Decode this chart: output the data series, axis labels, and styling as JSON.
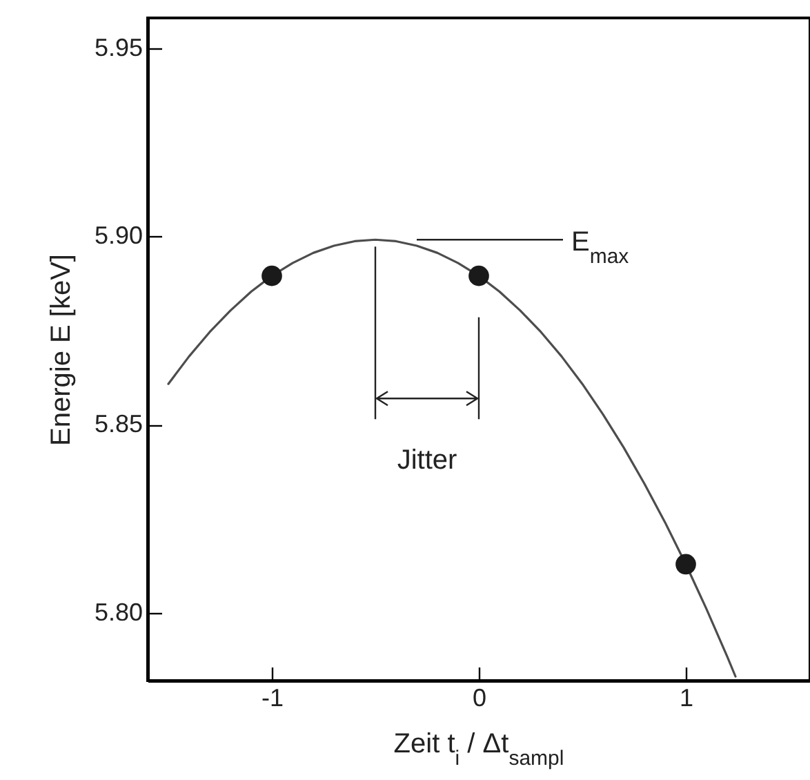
{
  "chart_data": {
    "type": "scatter",
    "xlabel": "Zeit    t$_{i}$ / Δt$_{sampl}$",
    "ylabel": "Energie  E [keV]",
    "xlim": [
      -1.6,
      1.6
    ],
    "ylim": [
      5.782,
      5.958
    ],
    "xticks": [
      -1,
      0,
      1
    ],
    "yticks": [
      {
        "value": 5.8,
        "label": "5.80"
      },
      {
        "value": 5.85,
        "label": "5.85"
      },
      {
        "value": 5.9,
        "label": "5.90"
      },
      {
        "value": 5.95,
        "label": "5.95"
      }
    ],
    "grid": false,
    "marker": "circle",
    "series": [
      {
        "type": "line",
        "color": "#4d4d4d",
        "line_style": "solid",
        "marker": "none",
        "x": [
          -1.5,
          -1.4,
          -1.3,
          -1.2,
          -1.1,
          -1.0,
          -0.9,
          -0.8,
          -0.7,
          -0.6,
          -0.5,
          -0.4,
          -0.3,
          -0.2,
          -0.1,
          0,
          0.1,
          0.2,
          0.3,
          0.4,
          0.5,
          0.6,
          0.7,
          0.8,
          0.9,
          1.0,
          1.1,
          1.2,
          1.24
        ],
        "values": [
          5.8608,
          5.8681,
          5.8746,
          5.8803,
          5.8853,
          5.8895,
          5.8929,
          5.8956,
          5.8975,
          5.8987,
          5.8991,
          5.8987,
          5.8975,
          5.8956,
          5.8929,
          5.8895,
          5.8853,
          5.8803,
          5.8746,
          5.8681,
          5.8608,
          5.8527,
          5.8439,
          5.8343,
          5.824,
          5.8129,
          5.801,
          5.7884,
          5.7831
        ]
      },
      {
        "type": "scatter",
        "color": "#1a1a1a",
        "x": [
          -1,
          0,
          1
        ],
        "values": [
          5.8895,
          5.8895,
          5.8129
        ]
      }
    ],
    "annotations": [
      {
        "text": "E$_{max}$",
        "x": -0.3,
        "y": 5.8991
      },
      "Jitter"
    ]
  }
}
